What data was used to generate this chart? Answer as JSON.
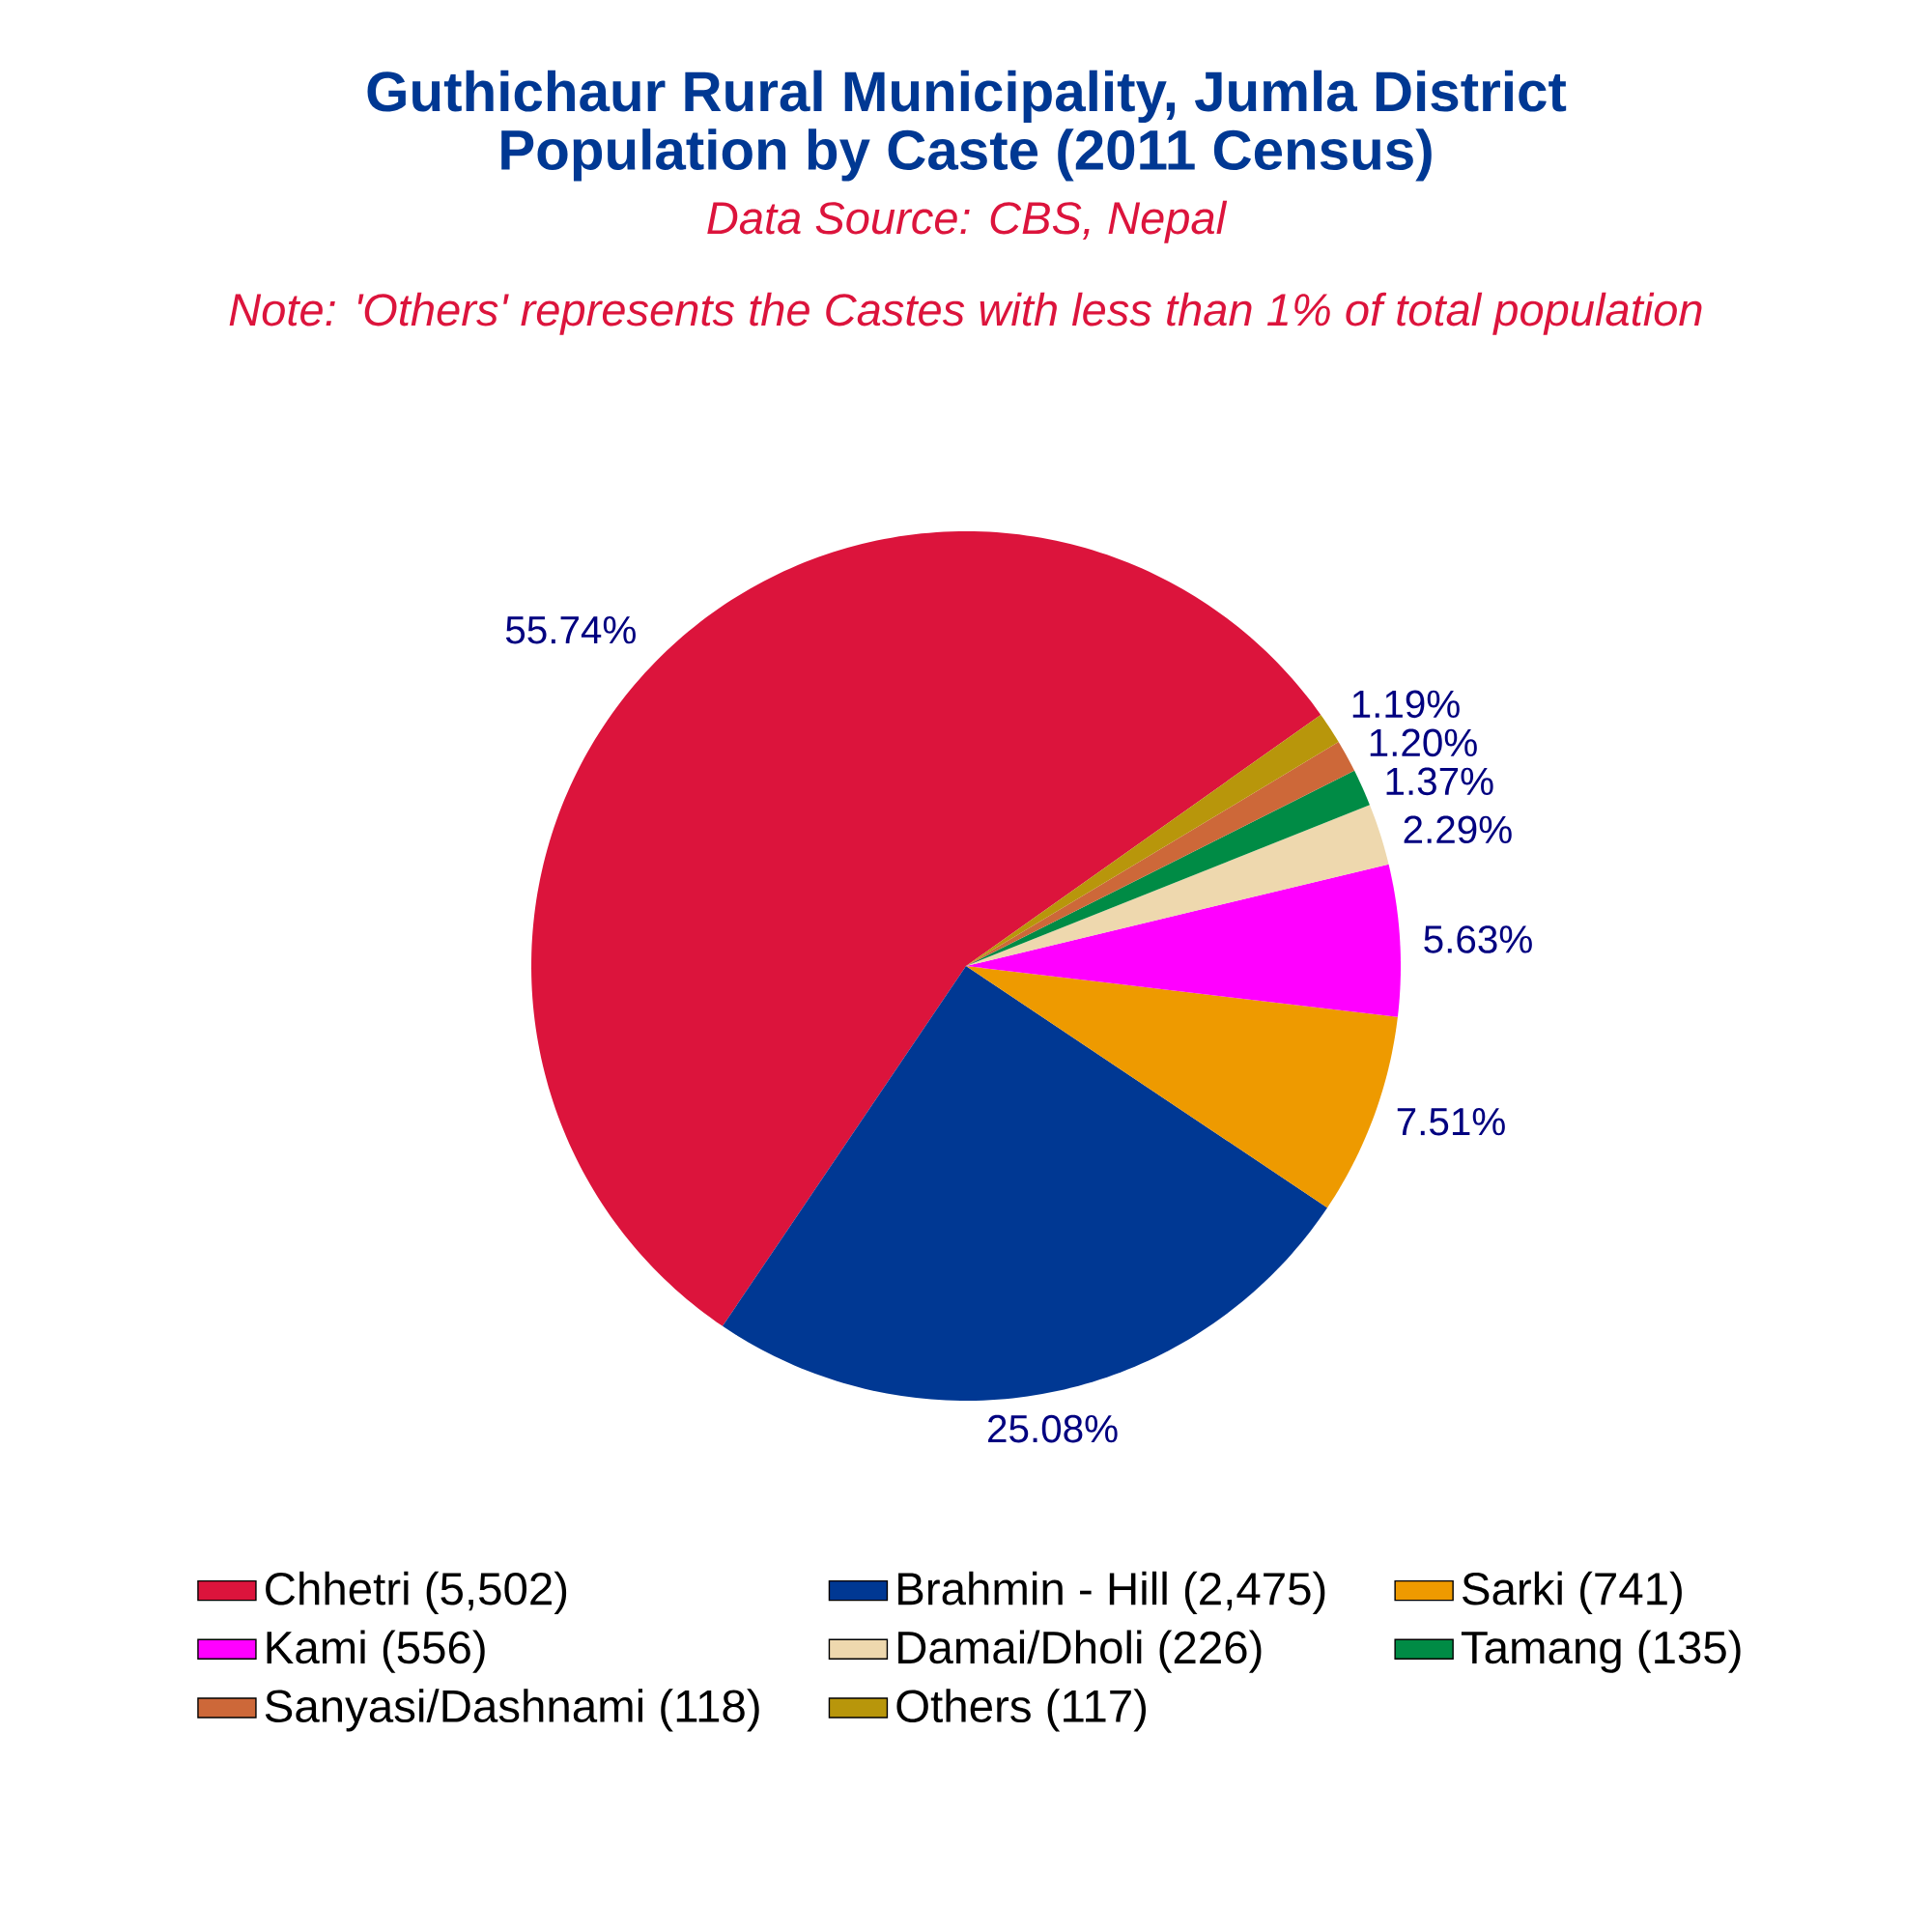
{
  "chart_data": {
    "type": "pie",
    "title": "Guthichaur Rural Municipality, Jumla District Population by Caste (2011 Census)",
    "subtitle": "Data Source: CBS, Nepal",
    "annotations": [
      "Note: 'Others' represents the Castes with less than 1% of total population"
    ],
    "categories": [
      "Chhetri (5,502)",
      "Brahmin - Hill (2,475)",
      "Sarki (741)",
      "Kami (556)",
      "Damai/Dholi (226)",
      "Tamang (135)",
      "Sanyasi/Dashnami (118)",
      "Others (117)"
    ],
    "values": [
      55.74,
      25.08,
      7.51,
      5.63,
      2.29,
      1.37,
      1.2,
      1.19
    ],
    "value_labels": [
      "55.74%",
      "25.08%",
      "7.51%",
      "5.63%",
      "2.29%",
      "1.37%",
      "1.20%",
      "1.19%"
    ],
    "colors": [
      "#dc143c",
      "#003893",
      "#ee9a00",
      "#ff00ff",
      "#eed8ae",
      "#008b45",
      "#cd6839",
      "#b8960b"
    ],
    "legend": "bottom"
  }
}
